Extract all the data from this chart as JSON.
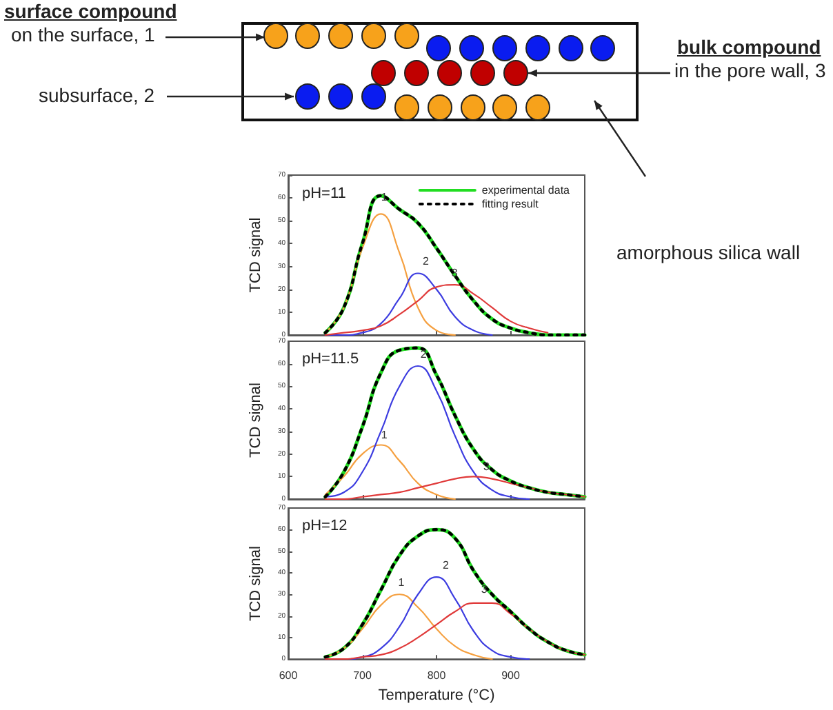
{
  "chart_data": [
    {
      "type": "line",
      "title": "pH=11",
      "ylabel": "TCD signal",
      "xlim": [
        600,
        1000
      ],
      "xticks": [
        600,
        700,
        800,
        900
      ],
      "ylim": [
        0,
        70
      ],
      "yticks": [
        0,
        10,
        20,
        30,
        40,
        50,
        60,
        70
      ],
      "tick_labels": "y",
      "legend": "top right",
      "grid": false,
      "x": [
        650,
        675,
        700,
        725,
        750,
        775,
        800,
        825,
        850,
        875,
        900,
        925,
        950,
        975,
        1000
      ],
      "annotations": [
        "surface compound",
        "on the surface, 1",
        "subsurface, 2",
        "bulk compound",
        "in the pore wall, 3",
        "amorphous silica wall",
        {
          "text": "1",
          "x": 722,
          "y": 56
        },
        {
          "text": "2",
          "x": 778,
          "y": 28
        },
        {
          "text": "3",
          "x": 817,
          "y": 23
        }
      ],
      "series": [
        {
          "name": "experimental data",
          "color": "#22dd22",
          "line_style": "solid",
          "values": [
            1,
            12,
            40,
            61,
            55,
            49,
            38,
            26,
            15,
            7,
            3,
            1,
            0,
            0,
            0
          ]
        },
        {
          "name": "fitting result",
          "color": "#000000",
          "line_style": "dotted",
          "values": [
            1,
            12,
            40,
            61,
            55,
            49,
            38,
            26,
            15,
            7,
            3,
            1,
            0,
            0,
            0
          ]
        },
        {
          "color": "#f5a040",
          "line_style": "solid",
          "values": [
            1,
            12,
            38,
            53,
            36,
            12,
            2,
            0,
            null,
            null,
            null,
            null,
            null,
            null,
            null
          ]
        },
        {
          "color": "#3c3ce0",
          "line_style": "solid",
          "values": [
            0,
            0,
            1,
            5,
            16,
            27,
            20,
            8,
            2,
            0,
            null,
            null,
            null,
            null,
            null
          ]
        },
        {
          "color": "#e03a3a",
          "line_style": "solid",
          "values": [
            0,
            1,
            2,
            4,
            9,
            15,
            21,
            22,
            18,
            12,
            6,
            3,
            1,
            null,
            null
          ]
        }
      ]
    },
    {
      "type": "line",
      "title": "pH=11.5",
      "ylabel": "TCD signal",
      "xlim": [
        600,
        1000
      ],
      "xticks": [
        600,
        700,
        800,
        900
      ],
      "ylim": [
        0,
        70
      ],
      "yticks": [
        0,
        10,
        20,
        30,
        40,
        50,
        60,
        70
      ],
      "tick_labels": "y",
      "grid": false,
      "x": [
        650,
        675,
        700,
        725,
        750,
        775,
        800,
        825,
        850,
        875,
        900,
        925,
        950,
        975,
        1000
      ],
      "annotations": [
        {
          "text": "1",
          "x": 722,
          "y": 24
        },
        {
          "text": "2",
          "x": 775,
          "y": 60
        },
        {
          "text": "3",
          "x": 860,
          "y": 10
        }
      ],
      "series": [
        {
          "color": "#22dd22",
          "line_style": "solid",
          "values": [
            1,
            12,
            32,
            56,
            66,
            67,
            55,
            37,
            22,
            13,
            8,
            5,
            3,
            2,
            1
          ]
        },
        {
          "color": "#000000",
          "line_style": "dotted",
          "values": [
            1,
            12,
            32,
            56,
            66,
            67,
            55,
            37,
            22,
            13,
            8,
            5,
            3,
            2,
            1
          ]
        },
        {
          "color": "#f5a040",
          "line_style": "solid",
          "values": [
            2,
            10,
            20,
            24,
            17,
            7,
            2,
            0,
            null,
            null,
            null,
            null,
            null,
            null,
            null
          ]
        },
        {
          "color": "#3c3ce0",
          "line_style": "solid",
          "values": [
            1,
            3,
            12,
            30,
            50,
            59,
            48,
            28,
            12,
            4,
            1,
            0,
            null,
            null,
            null
          ]
        },
        {
          "color": "#e03a3a",
          "line_style": "solid",
          "values": [
            0,
            0,
            1,
            2,
            3,
            5,
            7,
            9,
            10,
            9,
            7,
            5,
            3,
            2,
            1
          ]
        }
      ]
    },
    {
      "type": "line",
      "title": "pH=12",
      "xlabel": "Temperature (°C)",
      "ylabel": "TCD signal",
      "xlim": [
        600,
        1000
      ],
      "xticks": [
        600,
        700,
        800,
        900
      ],
      "ylim": [
        0,
        70
      ],
      "yticks": [
        0,
        10,
        20,
        30,
        40,
        50,
        60,
        70
      ],
      "grid": false,
      "x": [
        650,
        675,
        700,
        725,
        750,
        775,
        800,
        825,
        850,
        875,
        900,
        925,
        950,
        975,
        1000
      ],
      "annotations": [
        {
          "text": "1",
          "x": 745,
          "y": 31
        },
        {
          "text": "2",
          "x": 805,
          "y": 39
        },
        {
          "text": "3",
          "x": 857,
          "y": 28
        }
      ],
      "series": [
        {
          "color": "#22dd22",
          "line_style": "solid",
          "values": [
            1,
            5,
            16,
            32,
            48,
            57,
            60,
            56,
            41,
            30,
            22,
            14,
            8,
            4,
            2
          ]
        },
        {
          "color": "#000000",
          "line_style": "dotted",
          "values": [
            1,
            5,
            16,
            32,
            48,
            57,
            60,
            56,
            41,
            30,
            22,
            14,
            8,
            4,
            2
          ]
        },
        {
          "color": "#f5a040",
          "line_style": "solid",
          "values": [
            1,
            5,
            14,
            25,
            30,
            24,
            14,
            6,
            2,
            0,
            null,
            null,
            null,
            null,
            null
          ]
        },
        {
          "color": "#3c3ce0",
          "line_style": "solid",
          "values": [
            0,
            0,
            1,
            5,
            15,
            30,
            38,
            28,
            13,
            4,
            1,
            0,
            null,
            null,
            null
          ]
        },
        {
          "color": "#e03a3a",
          "line_style": "solid",
          "values": [
            0,
            0,
            1,
            2,
            5,
            10,
            16,
            22,
            26,
            26,
            21,
            14,
            8,
            4,
            2
          ]
        }
      ]
    }
  ]
}
